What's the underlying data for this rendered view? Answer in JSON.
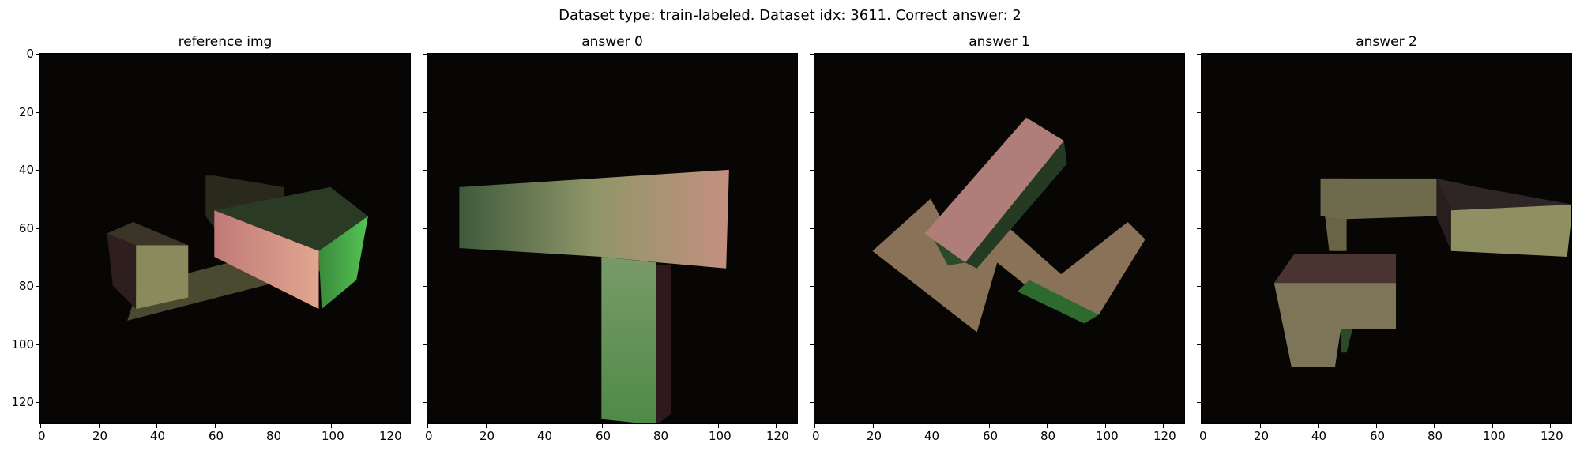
{
  "figure": {
    "suptitle": "Dataset type: train-labeled. Dataset idx: 3611. Correct answer: 2",
    "panels": [
      {
        "title": "reference img"
      },
      {
        "title": "answer 0"
      },
      {
        "title": "answer 1"
      },
      {
        "title": "answer 2"
      }
    ],
    "x_ticks": [
      "0",
      "20",
      "40",
      "60",
      "80",
      "100",
      "120"
    ],
    "y_ticks": [
      "0",
      "20",
      "40",
      "60",
      "80",
      "100",
      "120"
    ],
    "axis_range": [
      0,
      128
    ],
    "background_color": "#070604"
  }
}
